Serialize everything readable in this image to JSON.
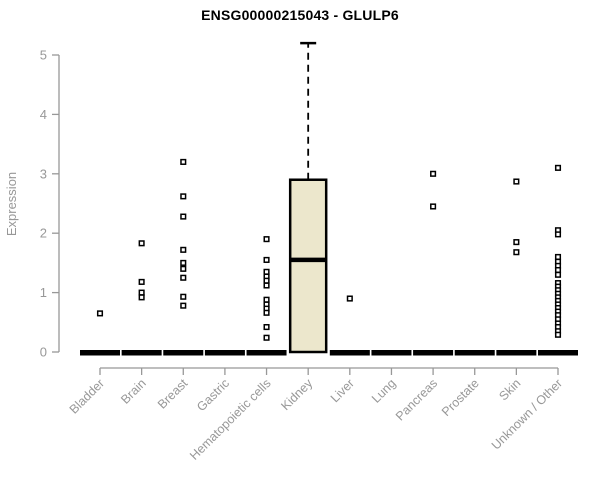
{
  "chart_data": {
    "type": "boxplot",
    "title": "ENSG00000215043 - GLULP6",
    "ylabel": "Expression",
    "xlabel": "",
    "ylim": [
      0,
      5
    ],
    "yticks": [
      0,
      1,
      2,
      3,
      4,
      5
    ],
    "grid": false,
    "legend": null,
    "categories": [
      "Bladder",
      "Brain",
      "Breast",
      "Gastric",
      "Hematopoietic cells",
      "Kidney",
      "Liver",
      "Lung",
      "Pancreas",
      "Prostate",
      "Skin",
      "Unknown / Other"
    ],
    "series": [
      {
        "category": "Bladder",
        "box": {
          "q1": 0,
          "median": 0,
          "q3": 0,
          "whisker_low": 0,
          "whisker_high": 0
        },
        "points": [
          0.65
        ]
      },
      {
        "category": "Brain",
        "box": {
          "q1": 0,
          "median": 0,
          "q3": 0,
          "whisker_low": 0,
          "whisker_high": 0
        },
        "points": [
          1.83,
          1.18,
          1.0,
          0.92
        ]
      },
      {
        "category": "Breast",
        "box": {
          "q1": 0,
          "median": 0,
          "q3": 0,
          "whisker_low": 0,
          "whisker_high": 0
        },
        "points": [
          3.2,
          2.62,
          2.28,
          1.72,
          1.5,
          1.4,
          1.25,
          0.93,
          0.78
        ]
      },
      {
        "category": "Gastric",
        "box": {
          "q1": 0,
          "median": 0,
          "q3": 0,
          "whisker_low": 0,
          "whisker_high": 0
        },
        "points": []
      },
      {
        "category": "Hematopoietic cells",
        "box": {
          "q1": 0,
          "median": 0,
          "q3": 0,
          "whisker_low": 0,
          "whisker_high": 0
        },
        "points": [
          1.9,
          1.55,
          1.35,
          1.27,
          1.2,
          1.12,
          0.88,
          0.8,
          0.73,
          0.66,
          0.42,
          0.24
        ]
      },
      {
        "category": "Kidney",
        "box": {
          "q1": 0,
          "median": 1.55,
          "q3": 2.9,
          "whisker_low": 0,
          "whisker_high": 5.2
        },
        "points": []
      },
      {
        "category": "Liver",
        "box": {
          "q1": 0,
          "median": 0,
          "q3": 0,
          "whisker_low": 0,
          "whisker_high": 0
        },
        "points": [
          0.9
        ]
      },
      {
        "category": "Lung",
        "box": {
          "q1": 0,
          "median": 0,
          "q3": 0,
          "whisker_low": 0,
          "whisker_high": 0
        },
        "points": []
      },
      {
        "category": "Pancreas",
        "box": {
          "q1": 0,
          "median": 0,
          "q3": 0,
          "whisker_low": 0,
          "whisker_high": 0
        },
        "points": [
          3.0,
          2.45
        ]
      },
      {
        "category": "Prostate",
        "box": {
          "q1": 0,
          "median": 0,
          "q3": 0,
          "whisker_low": 0,
          "whisker_high": 0
        },
        "points": []
      },
      {
        "category": "Skin",
        "box": {
          "q1": 0,
          "median": 0,
          "q3": 0,
          "whisker_low": 0,
          "whisker_high": 0
        },
        "points": [
          2.87,
          1.85,
          1.68
        ]
      },
      {
        "category": "Unknown / Other",
        "box": {
          "q1": 0,
          "median": 0,
          "q3": 0,
          "whisker_low": 0,
          "whisker_high": 0
        },
        "points": [
          3.1,
          2.05,
          1.98,
          1.6,
          1.52,
          1.45,
          1.38,
          1.3,
          1.16,
          1.1,
          1.04,
          0.98,
          0.92,
          0.86,
          0.8,
          0.74,
          0.68,
          0.62,
          0.55,
          0.48,
          0.42,
          0.35,
          0.29
        ]
      }
    ],
    "colors": {
      "box_fill": "#ECE7CC",
      "box_border": "#000000",
      "median": "#000000",
      "whisker": "#000000",
      "point_stroke": "#000000",
      "point_fill": "#FFFFFF",
      "axis": "#989898",
      "title": "#000000",
      "background": "#FFFFFF"
    }
  }
}
